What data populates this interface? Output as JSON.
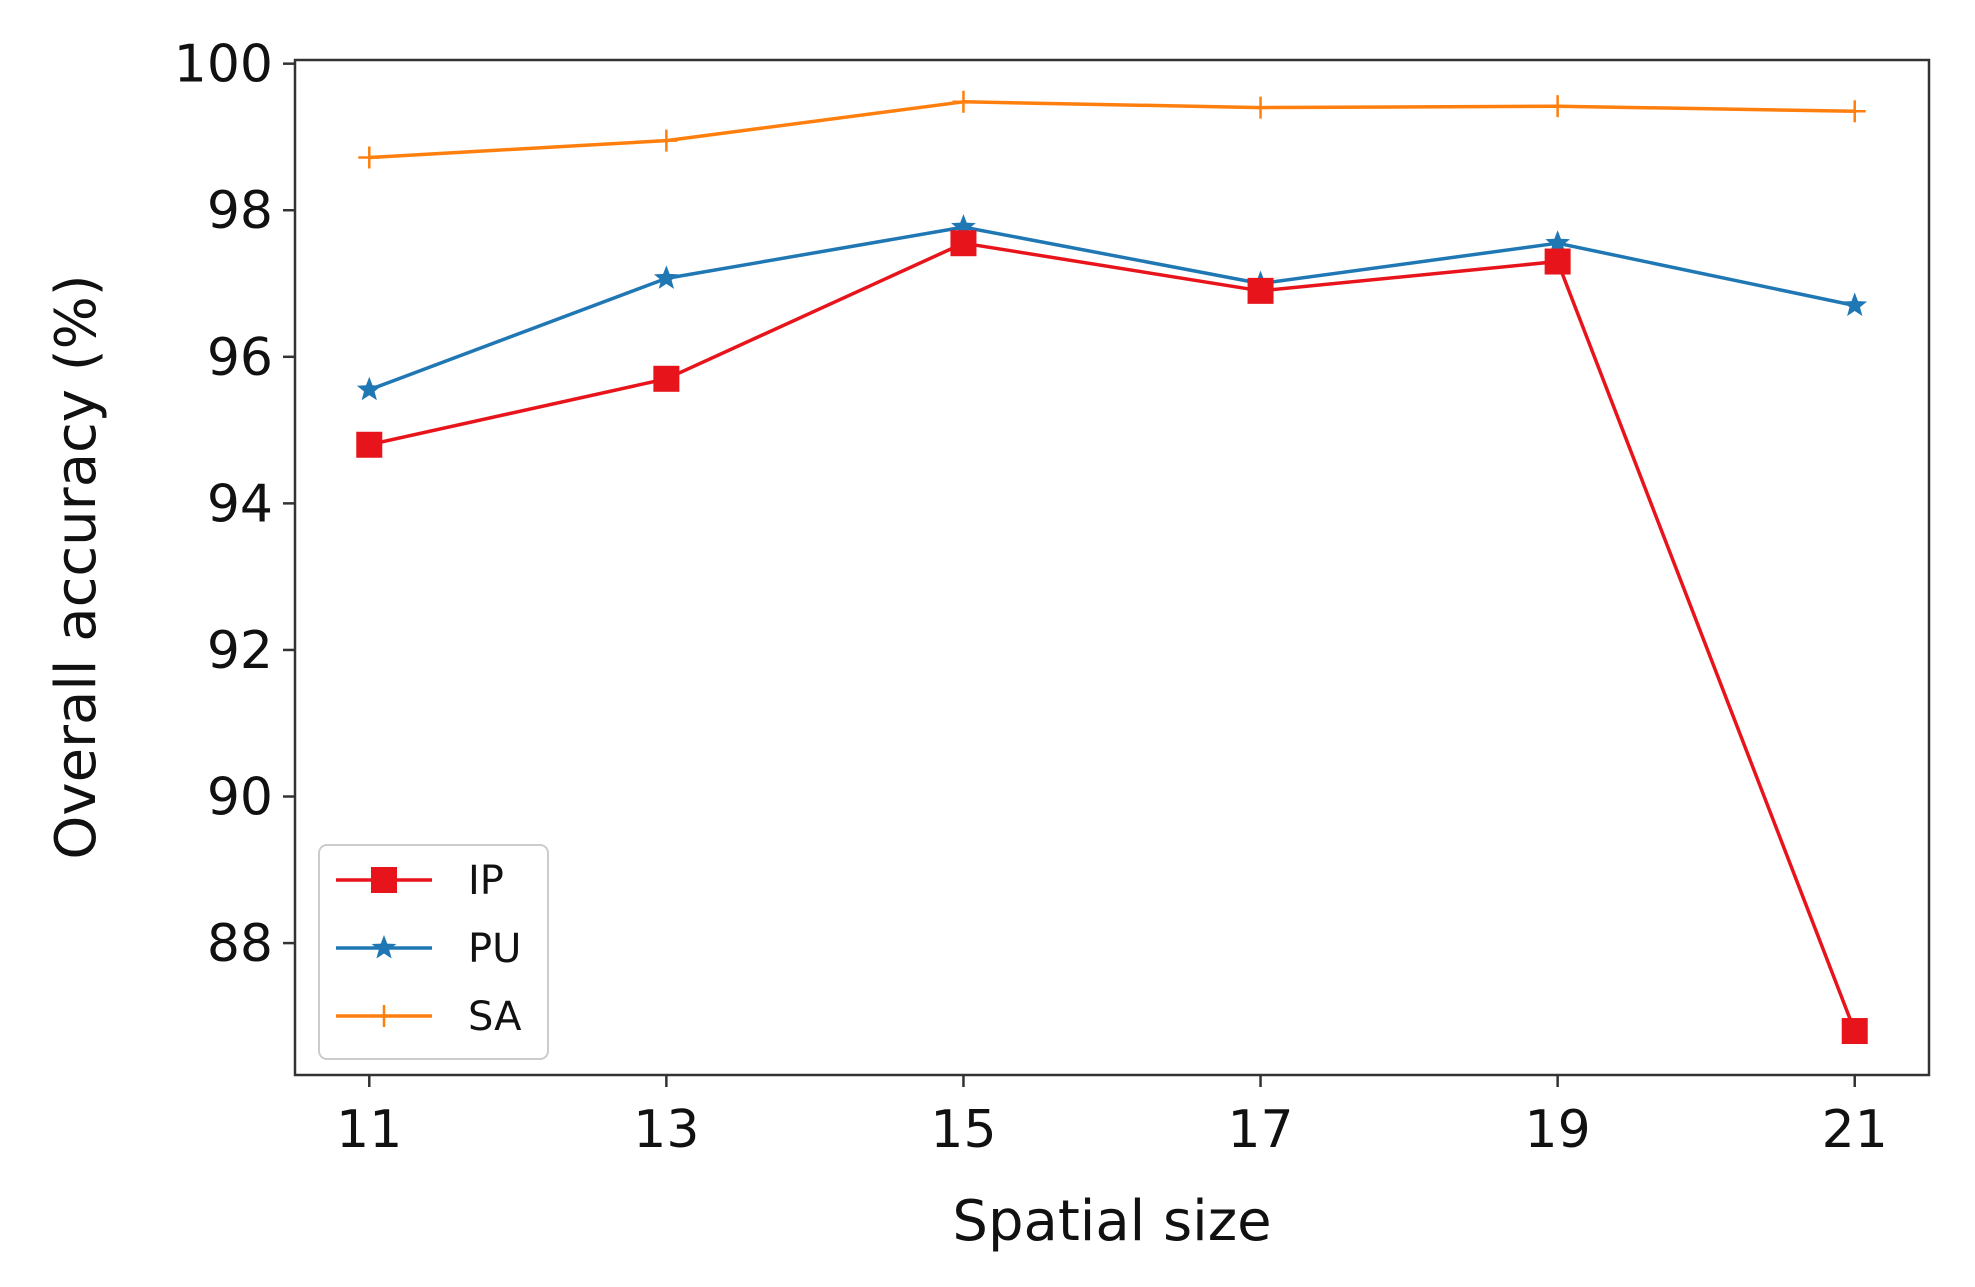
{
  "chart_data": {
    "type": "line",
    "title": "",
    "xlabel": "Spatial size",
    "ylabel": "Overall accuracy (%)",
    "x": [
      11,
      13,
      15,
      17,
      19,
      21
    ],
    "xticks": [
      "11",
      "13",
      "15",
      "17",
      "19",
      "21"
    ],
    "yticks": [
      "88",
      "90",
      "92",
      "94",
      "96",
      "98",
      "100"
    ],
    "xlim": [
      10.5,
      21.5
    ],
    "ylim": [
      86.2,
      100.05
    ],
    "grid": false,
    "legend_position": "lower-left",
    "series": [
      {
        "name": "IP",
        "color": "#e8141c",
        "marker": "square",
        "values": [
          94.8,
          95.7,
          97.55,
          96.9,
          97.3,
          86.8
        ]
      },
      {
        "name": "PU",
        "color": "#1f77b4",
        "marker": "star",
        "values": [
          95.55,
          97.07,
          97.77,
          97.0,
          97.55,
          96.7
        ]
      },
      {
        "name": "SA",
        "color": "#ff7f0e",
        "marker": "plus",
        "values": [
          98.72,
          98.95,
          99.48,
          99.4,
          99.42,
          99.35
        ]
      }
    ]
  }
}
